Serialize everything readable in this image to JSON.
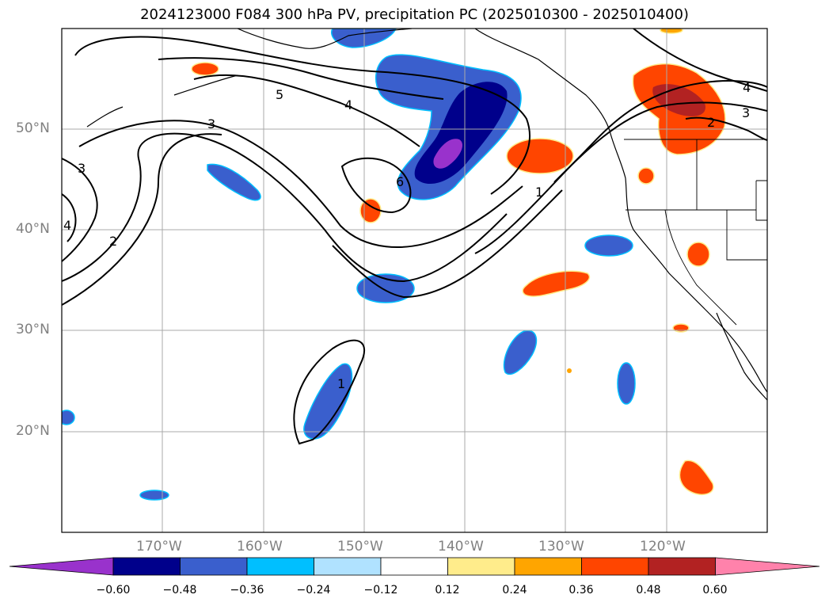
{
  "title": "2024123000 F084 300 hPa PV, precipitation PC (2025010300 - 2025010400)",
  "map": {
    "projection": "PlateCarree",
    "lon_range": [
      -180,
      -110
    ],
    "lat_range": [
      10,
      60
    ],
    "lat_ticks": [
      "50°N",
      "40°N",
      "30°N",
      "20°N"
    ],
    "lon_ticks": [
      "170°W",
      "160°W",
      "150°W",
      "140°W",
      "130°W",
      "120°W"
    ],
    "grid": true
  },
  "pv_contour_labels": [
    "5",
    "4",
    "3",
    "3",
    "2",
    "4",
    "6",
    "1",
    "1",
    "4",
    "3",
    "2"
  ],
  "colorbar": {
    "ticks": [
      "−0.60",
      "−0.48",
      "−0.36",
      "−0.24",
      "−0.12",
      "0.12",
      "0.24",
      "0.36",
      "0.48",
      "0.60"
    ],
    "colors": [
      "#9932CC",
      "#00008B",
      "#3A5FCD",
      "#00BFFF",
      "#B0E2FF",
      "#FFFFFF",
      "#FFEC8B",
      "#FFA500",
      "#FF4500",
      "#B22222",
      "#FF82AB"
    ]
  }
}
